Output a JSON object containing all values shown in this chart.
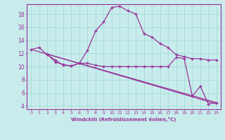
{
  "xlabel": "Windchill (Refroidissement éolien,°C)",
  "background_color": "#c8ecec",
  "line_color": "#993399",
  "grid_color": "#aadddd",
  "xlim": [
    -0.5,
    23.5
  ],
  "ylim": [
    3.5,
    19.5
  ],
  "yticks": [
    4,
    6,
    8,
    10,
    12,
    14,
    16,
    18
  ],
  "xticks": [
    0,
    1,
    2,
    3,
    4,
    5,
    6,
    7,
    8,
    9,
    10,
    11,
    12,
    13,
    14,
    15,
    16,
    17,
    18,
    19,
    20,
    21,
    22,
    23
  ],
  "xtick_labels": [
    "0",
    "1",
    "2",
    "3",
    "4",
    "5",
    "6",
    "7",
    "8",
    "9",
    "10",
    "11",
    "12",
    "13",
    "14",
    "15",
    "16",
    "17",
    "18",
    "19",
    "20",
    "21",
    "22",
    "23"
  ],
  "curve1_x": [
    0,
    1,
    2,
    3,
    4,
    5,
    6,
    7,
    8,
    9,
    10,
    11,
    12,
    13,
    14,
    15,
    16,
    17,
    18,
    19,
    20,
    21,
    22,
    23
  ],
  "curve1_y": [
    12.6,
    12.9,
    11.8,
    11.0,
    10.2,
    10.1,
    10.5,
    12.5,
    15.4,
    16.8,
    19.0,
    19.2,
    18.5,
    18.0,
    15.0,
    14.5,
    13.5,
    12.9,
    11.8,
    11.5,
    11.2,
    11.2,
    11.0,
    11.0
  ],
  "curve2_x": [
    2,
    3,
    4,
    5,
    6,
    7,
    8,
    9,
    10,
    11,
    12,
    13,
    14,
    15,
    16,
    17,
    18,
    19,
    20,
    21,
    22,
    23
  ],
  "curve2_y": [
    11.9,
    10.7,
    10.3,
    10.1,
    10.5,
    10.5,
    10.2,
    10.0,
    10.0,
    10.0,
    10.0,
    10.0,
    10.0,
    10.0,
    10.0,
    10.0,
    11.4,
    11.2,
    5.5,
    7.0,
    4.3,
    4.5
  ],
  "line1_x": [
    0,
    23
  ],
  "line1_y": [
    12.6,
    4.5
  ],
  "line2_x": [
    2,
    23
  ],
  "line2_y": [
    11.9,
    4.3
  ]
}
